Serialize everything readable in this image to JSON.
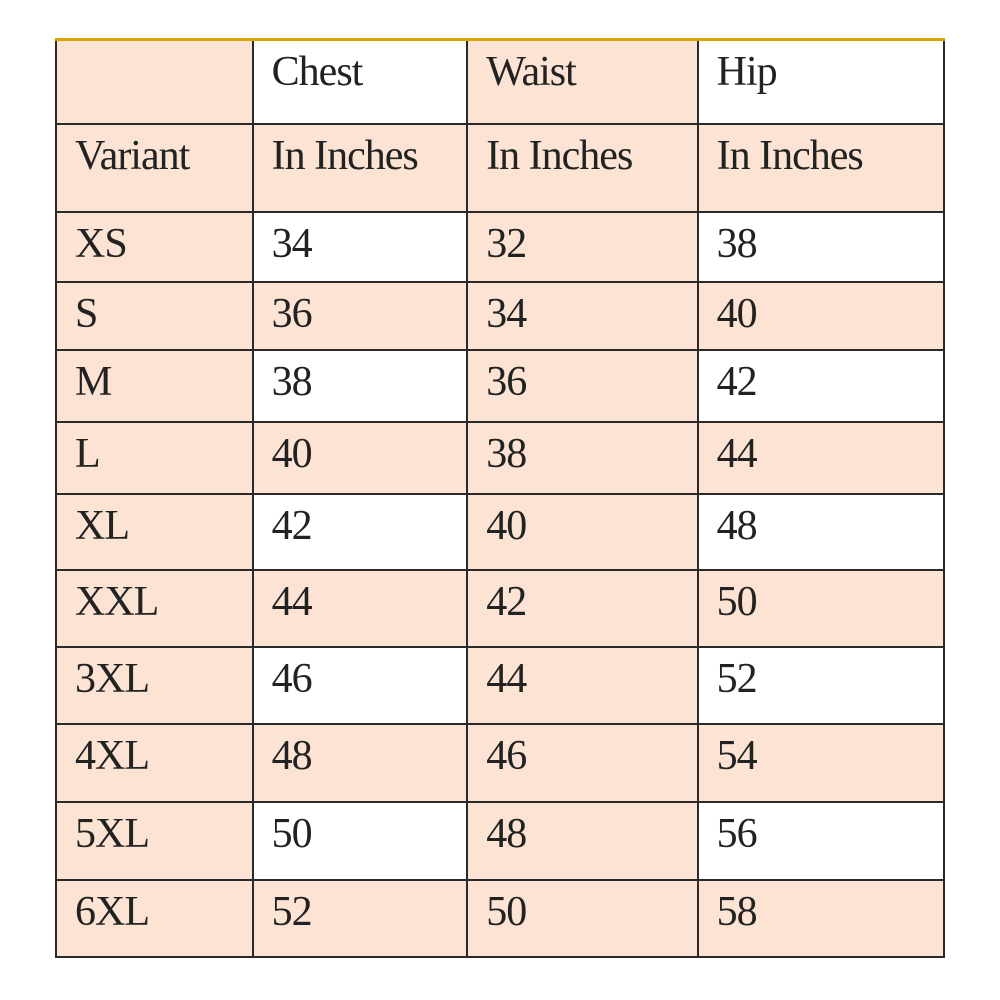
{
  "colors": {
    "shaded": "#fce3d3",
    "plain": "#ffffff",
    "border": "#2a2a2a",
    "top_rule": "#d9a400"
  },
  "header": {
    "row1": [
      "",
      "Chest",
      "Waist",
      "Hip"
    ],
    "row2": [
      "Variant",
      "In Inches",
      "In Inches",
      "In Inches"
    ]
  },
  "rows": [
    {
      "variant": "XS",
      "chest": "34",
      "waist": "32",
      "hip": "38"
    },
    {
      "variant": "S",
      "chest": "36",
      "waist": "34",
      "hip": "40"
    },
    {
      "variant": "M",
      "chest": "38",
      "waist": "36",
      "hip": "42"
    },
    {
      "variant": "L",
      "chest": "40",
      "waist": "38",
      "hip": "44"
    },
    {
      "variant": "XL",
      "chest": "42",
      "waist": "40",
      "hip": "48"
    },
    {
      "variant": "XXL",
      "chest": "44",
      "waist": "42",
      "hip": "50"
    },
    {
      "variant": "3XL",
      "chest": "46",
      "waist": "44",
      "hip": "52"
    },
    {
      "variant": "4XL",
      "chest": "48",
      "waist": "46",
      "hip": "54"
    },
    {
      "variant": "5XL",
      "chest": "50",
      "waist": "48",
      "hip": "56"
    },
    {
      "variant": "6XL",
      "chest": "52",
      "waist": "50",
      "hip": "58"
    }
  ]
}
